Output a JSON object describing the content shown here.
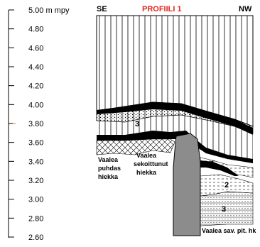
{
  "title": "PROFIILI 1",
  "direction_left": "SE",
  "direction_right": "NW",
  "axis": {
    "ticks": [
      {
        "value": 5.0,
        "label": "5.00 m mpy"
      },
      {
        "value": 4.8,
        "label": "4.80"
      },
      {
        "value": 4.6,
        "label": "4.60"
      },
      {
        "value": 4.4,
        "label": "4.40"
      },
      {
        "value": 4.2,
        "label": "4.20"
      },
      {
        "value": 4.0,
        "label": "4.00"
      },
      {
        "value": 3.8,
        "label": "3.80"
      },
      {
        "value": 3.6,
        "label": "3.60"
      },
      {
        "value": 3.4,
        "label": "3.40"
      },
      {
        "value": 3.2,
        "label": "3.20"
      },
      {
        "value": 3.0,
        "label": "3.00"
      },
      {
        "value": 2.8,
        "label": "2.80"
      },
      {
        "value": 2.6,
        "label": "2.60"
      }
    ]
  },
  "annotations": {
    "sand_clean": [
      "Vaalea",
      "puhdas",
      "hiekka"
    ],
    "sand_mixed": [
      "Vaalea",
      "sekoittunut",
      "hiekka"
    ],
    "clay": "Vaalea sav. pit. hk"
  },
  "layer_labels": [
    "3",
    "1",
    "2",
    "3"
  ],
  "colors": {
    "title": "#e0261f",
    "stone": "#8c8c8c",
    "line": "#000000"
  }
}
